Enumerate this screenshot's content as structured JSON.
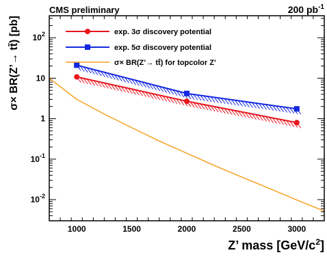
{
  "chart_data": {
    "type": "line",
    "header_left": "CMS preliminary",
    "header_right": "200 pb",
    "header_right_sup": "-1",
    "xlabel": "Z’ mass [GeV/c",
    "xlabel_sup": "2",
    "xlabel_end": "]",
    "ylabel": "σ× BR(Z’→ tt̄) [pb]",
    "xlim": [
      750,
      3250
    ],
    "ylim": [
      0.003,
      350
    ],
    "yscale": "log",
    "grid": false,
    "legend_position": "top-left",
    "x_ticks": [
      1000,
      1500,
      2000,
      2500,
      3000
    ],
    "x_tick_labels": [
      "1000",
      "1500",
      "2000",
      "2500",
      "3000"
    ],
    "y_ticks": [
      0.01,
      0.1,
      1,
      10,
      100
    ],
    "y_tick_labels": [
      {
        "base": "10",
        "exp": "-2"
      },
      {
        "base": "10",
        "exp": "-1"
      },
      {
        "base": "1",
        "exp": ""
      },
      {
        "base": "10",
        "exp": ""
      },
      {
        "base": "10",
        "exp": "2"
      }
    ],
    "series": [
      {
        "name": "exp. 3σ discovery potential",
        "color": "#e8141c",
        "marker": "circle",
        "hatched_band": true,
        "x": [
          1000,
          2000,
          3000
        ],
        "y": [
          10.8,
          2.7,
          0.8
        ]
      },
      {
        "name": "exp. 5σ discovery potential",
        "color": "#1428e0",
        "marker": "square",
        "hatched_band": true,
        "x": [
          1000,
          2000,
          3000
        ],
        "y": [
          21,
          4.2,
          1.75
        ]
      },
      {
        "name": "σ× BR(Z’→ tt̄) for topcolor Z’",
        "color": "#f5a020",
        "marker": "none",
        "hatched_band": false,
        "x": [
          750,
          1000,
          1250,
          1500,
          1750,
          2000,
          2250,
          2500,
          2750,
          3000,
          3250
        ],
        "y": [
          10,
          3.0,
          1.3,
          0.6,
          0.28,
          0.14,
          0.07,
          0.036,
          0.019,
          0.0098,
          0.0052
        ]
      }
    ]
  }
}
